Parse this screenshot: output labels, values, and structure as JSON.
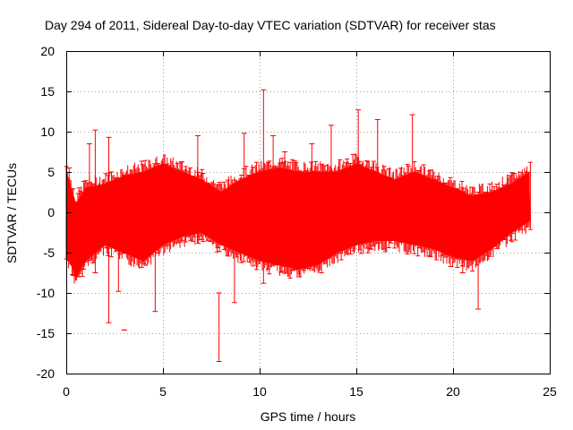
{
  "chart_data": {
    "type": "scatter",
    "title": "Day 294 of 2011, Sidereal Day-to-day VTEC variation (SDTVAR) for receiver stas",
    "xlabel": "GPS time / hours",
    "ylabel": "SDTVAR / TECUs",
    "xlim": [
      0,
      25
    ],
    "ylim": [
      -20,
      20
    ],
    "xticks": [
      0,
      5,
      10,
      15,
      20,
      25
    ],
    "yticks": [
      -20,
      -15,
      -10,
      -5,
      0,
      5,
      10,
      15,
      20
    ],
    "grid": true,
    "series_color": "#ff0000",
    "series": [
      {
        "name": "SDTVAR",
        "style": "points with error bars",
        "envelope": [
          {
            "x": 0.0,
            "low": -5,
            "high": 5
          },
          {
            "x": 0.5,
            "low": -8,
            "high": 1
          },
          {
            "x": 1.0,
            "low": -6,
            "high": 3
          },
          {
            "x": 2.0,
            "low": -4,
            "high": 3.5
          },
          {
            "x": 3.0,
            "low": -5,
            "high": 4.5
          },
          {
            "x": 4.0,
            "low": -6,
            "high": 5
          },
          {
            "x": 5.0,
            "low": -4,
            "high": 6
          },
          {
            "x": 6.0,
            "low": -3,
            "high": 5
          },
          {
            "x": 7.0,
            "low": -2.5,
            "high": 4
          },
          {
            "x": 8.0,
            "low": -4,
            "high": 2.5
          },
          {
            "x": 9.0,
            "low": -5,
            "high": 4
          },
          {
            "x": 10.0,
            "low": -6,
            "high": 5
          },
          {
            "x": 11.0,
            "low": -6.5,
            "high": 5.5
          },
          {
            "x": 12.0,
            "low": -7,
            "high": 5
          },
          {
            "x": 13.0,
            "low": -6.5,
            "high": 5
          },
          {
            "x": 14.0,
            "low": -5,
            "high": 5
          },
          {
            "x": 15.0,
            "low": -4,
            "high": 6
          },
          {
            "x": 16.0,
            "low": -3.5,
            "high": 5
          },
          {
            "x": 17.0,
            "low": -3.5,
            "high": 4
          },
          {
            "x": 18.0,
            "low": -4,
            "high": 5
          },
          {
            "x": 19.0,
            "low": -4.5,
            "high": 4
          },
          {
            "x": 20.0,
            "low": -5.5,
            "high": 3
          },
          {
            "x": 21.0,
            "low": -6,
            "high": 2
          },
          {
            "x": 22.0,
            "low": -4.5,
            "high": 2.5
          },
          {
            "x": 23.0,
            "low": -2.5,
            "high": 3.5
          },
          {
            "x": 24.0,
            "low": -1,
            "high": 5
          }
        ],
        "spikes": [
          {
            "x": 0.15,
            "low": -6,
            "high": 5.5
          },
          {
            "x": 1.2,
            "low": -4,
            "high": 8.5
          },
          {
            "x": 1.5,
            "low": -7.5,
            "high": 10.2
          },
          {
            "x": 2.2,
            "low": -13.7,
            "high": 9.3
          },
          {
            "x": 2.7,
            "low": -9.8,
            "high": 3
          },
          {
            "x": 3.0,
            "low": -14.6,
            "high": -14.6
          },
          {
            "x": 4.6,
            "low": -12.3,
            "high": 5.5
          },
          {
            "x": 6.8,
            "low": -3,
            "high": 9.5
          },
          {
            "x": 7.9,
            "low": -18.5,
            "high": -10
          },
          {
            "x": 8.7,
            "low": -11.2,
            "high": 4
          },
          {
            "x": 9.2,
            "low": -4,
            "high": 9.8
          },
          {
            "x": 10.2,
            "low": -8.8,
            "high": 15.2
          },
          {
            "x": 10.7,
            "low": -4,
            "high": 9.5
          },
          {
            "x": 11.3,
            "low": -4,
            "high": 7.5
          },
          {
            "x": 12.7,
            "low": -4,
            "high": 8.5
          },
          {
            "x": 13.7,
            "low": -4,
            "high": 10.8
          },
          {
            "x": 15.1,
            "low": -3,
            "high": 12.7
          },
          {
            "x": 16.1,
            "low": -3,
            "high": 11.5
          },
          {
            "x": 17.9,
            "low": -4,
            "high": 12.1
          },
          {
            "x": 20.5,
            "low": -7.5,
            "high": 3
          },
          {
            "x": 21.3,
            "low": -12,
            "high": 2.5
          }
        ]
      }
    ]
  }
}
